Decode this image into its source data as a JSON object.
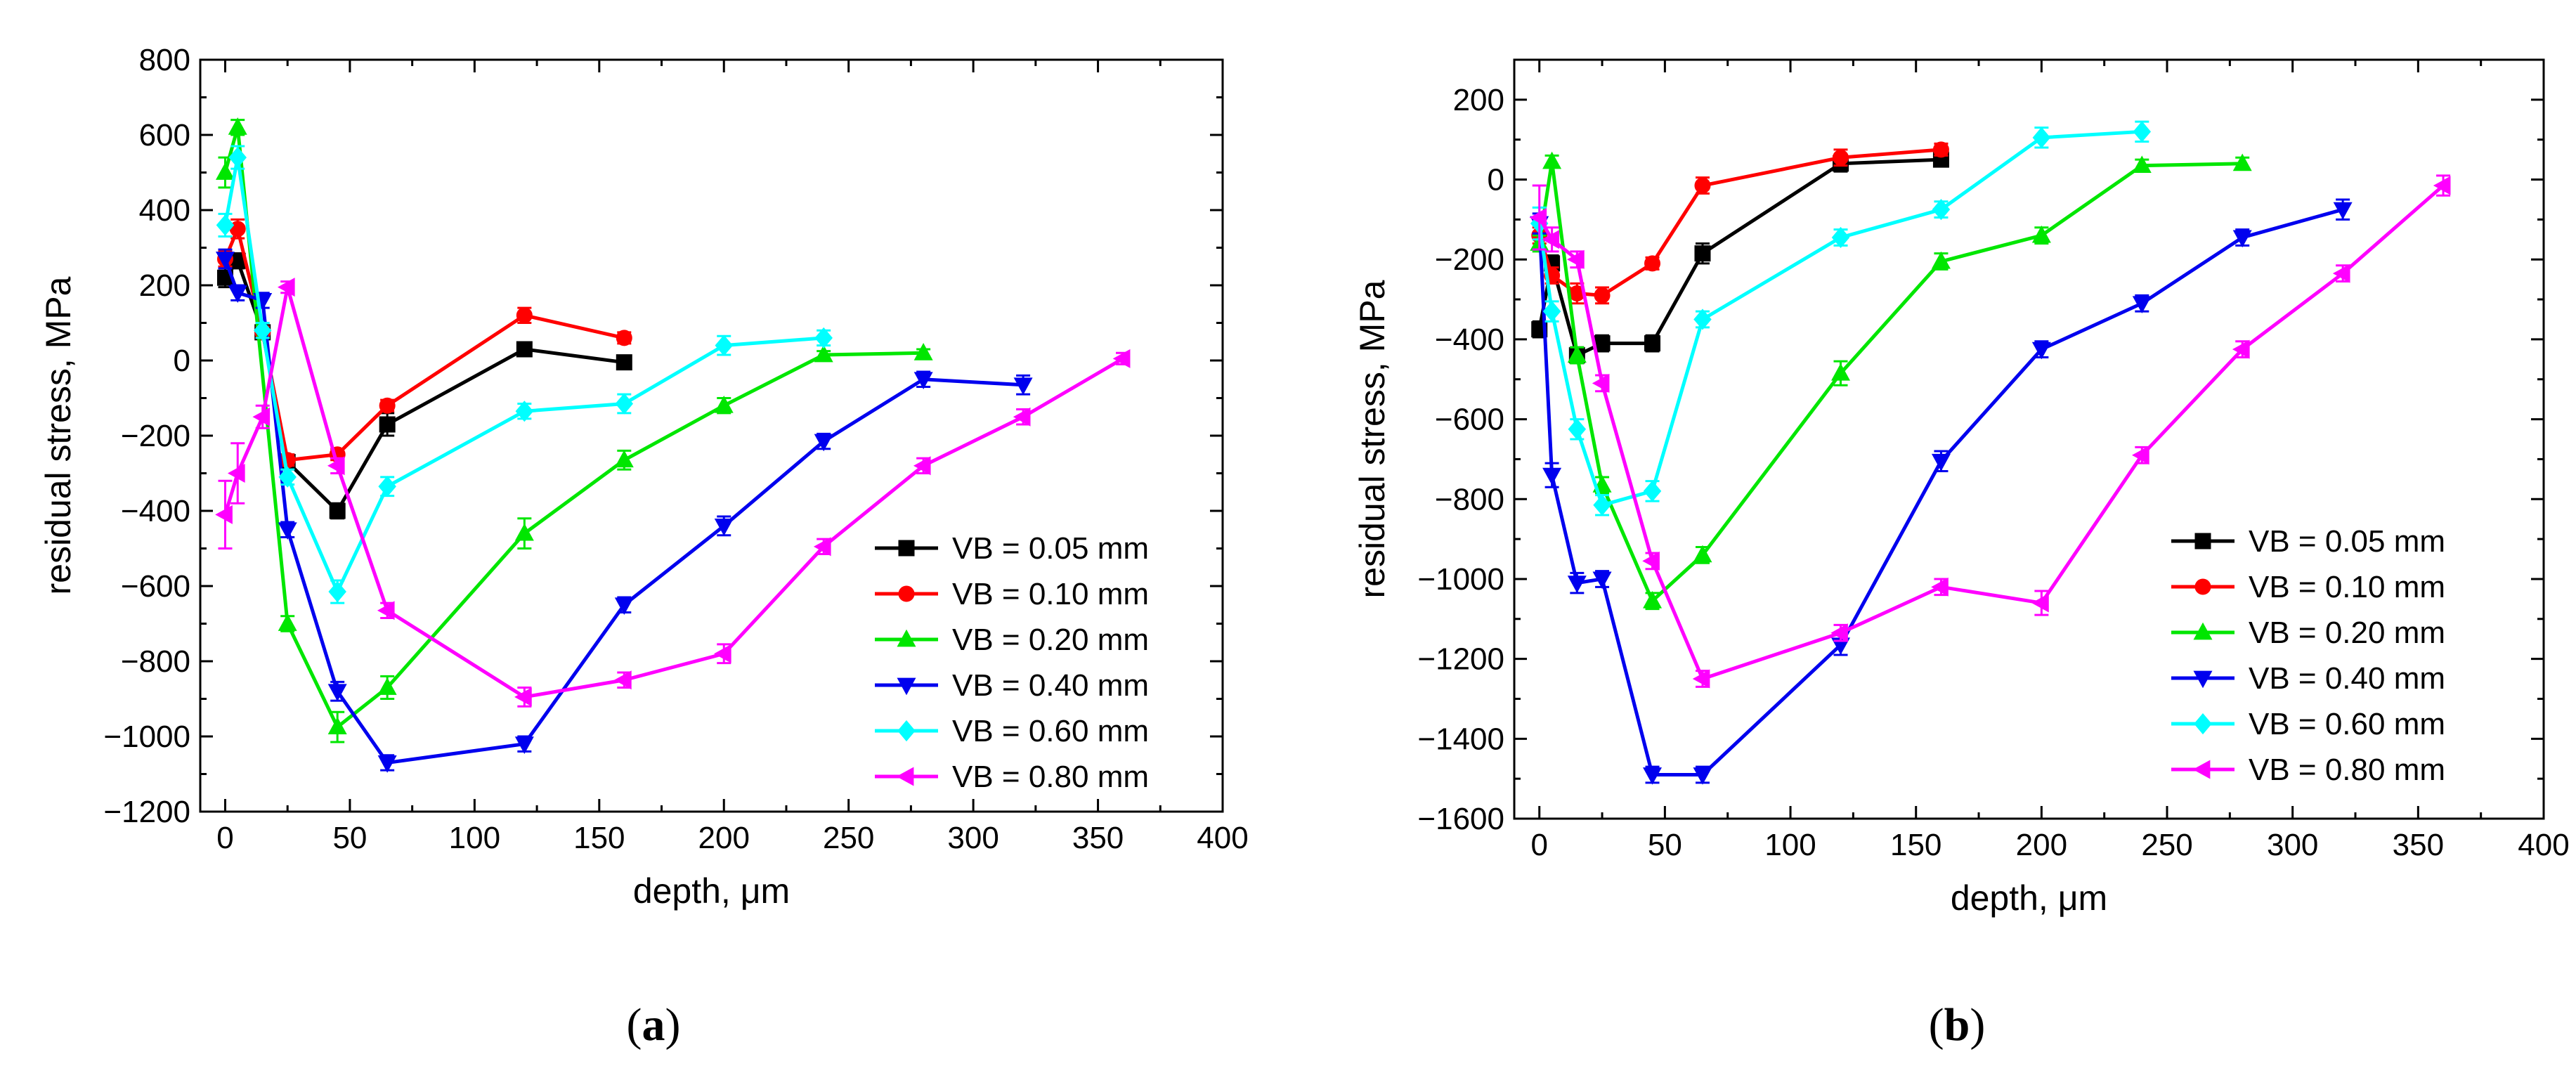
{
  "colors": {
    "VB = 0.05 mm": "#000000",
    "VB = 0.10 mm": "#ff0000",
    "VB = 0.20 mm": "#00e600",
    "VB = 0.40 mm": "#0000ee",
    "VB = 0.60 mm": "#00ffff",
    "VB = 0.80 mm": "#ff00ff"
  },
  "chart_data": [
    {
      "type": "line",
      "panel_label": "a",
      "xlabel": "depth, μm",
      "ylabel": "residual stress, MPa",
      "xlim": [
        -10,
        400
      ],
      "ylim": [
        -1200,
        800
      ],
      "xticks": [
        0,
        50,
        100,
        150,
        200,
        250,
        300,
        350,
        400
      ],
      "yticks": [
        -1200,
        -1000,
        -800,
        -600,
        -400,
        -200,
        0,
        200,
        400,
        600,
        800
      ],
      "legend_position": "bottom-right",
      "series": [
        {
          "name": "VB = 0.05 mm",
          "marker": "square",
          "x": [
            0,
            5,
            15,
            25,
            45,
            65,
            120,
            160
          ],
          "y": [
            220,
            265,
            75,
            -270,
            -400,
            -170,
            30,
            -5
          ],
          "err": [
            25,
            20,
            15,
            20,
            20,
            30,
            15,
            15
          ]
        },
        {
          "name": "VB = 0.10 mm",
          "marker": "circle",
          "x": [
            0,
            5,
            15,
            25,
            45,
            65,
            120,
            160
          ],
          "y": [
            270,
            350,
            75,
            -265,
            -250,
            -120,
            120,
            60
          ],
          "err": [
            20,
            25,
            15,
            15,
            15,
            15,
            20,
            15
          ]
        },
        {
          "name": "VB = 0.20 mm",
          "marker": "triangle-up",
          "x": [
            0,
            5,
            25,
            45,
            65,
            120,
            160,
            200,
            240,
            280
          ],
          "y": [
            500,
            620,
            -700,
            -975,
            -870,
            -460,
            -265,
            -120,
            15,
            20
          ],
          "err": [
            40,
            20,
            20,
            40,
            30,
            40,
            25,
            20,
            10,
            10
          ]
        },
        {
          "name": "VB = 0.40 mm",
          "marker": "triangle-down",
          "x": [
            0,
            5,
            15,
            25,
            45,
            65,
            120,
            160,
            200,
            240,
            280,
            320
          ],
          "y": [
            270,
            180,
            160,
            -450,
            -880,
            -1070,
            -1020,
            -650,
            -440,
            -215,
            -50,
            -65
          ],
          "err": [
            25,
            20,
            20,
            20,
            25,
            20,
            20,
            20,
            25,
            20,
            20,
            25
          ]
        },
        {
          "name": "VB = 0.60 mm",
          "marker": "diamond",
          "x": [
            0,
            5,
            15,
            25,
            45,
            65,
            120,
            160,
            200,
            240
          ],
          "y": [
            360,
            540,
            80,
            -310,
            -615,
            -335,
            -135,
            -115,
            40,
            60
          ],
          "err": [
            30,
            30,
            20,
            20,
            30,
            25,
            20,
            25,
            25,
            20
          ]
        },
        {
          "name": "VB = 0.80 mm",
          "marker": "triangle-left",
          "x": [
            0,
            5,
            15,
            25,
            45,
            65,
            120,
            160,
            200,
            240,
            280,
            320,
            360
          ],
          "y": [
            -410,
            -300,
            -150,
            195,
            -280,
            -665,
            -895,
            -850,
            -780,
            -495,
            -280,
            -150,
            5
          ],
          "err": [
            90,
            80,
            30,
            15,
            20,
            20,
            25,
            20,
            25,
            20,
            20,
            20,
            15
          ]
        }
      ]
    },
    {
      "type": "line",
      "panel_label": "b",
      "xlabel": "depth, μm",
      "ylabel": "residual stress, MPa",
      "xlim": [
        -10,
        400
      ],
      "ylim": [
        -1600,
        300
      ],
      "xticks": [
        0,
        50,
        100,
        150,
        200,
        250,
        300,
        350,
        400
      ],
      "yticks": [
        -1600,
        -1400,
        -1200,
        -1000,
        -800,
        -600,
        -400,
        -200,
        0,
        200
      ],
      "legend_position": "bottom-right",
      "series": [
        {
          "name": "VB = 0.05 mm",
          "marker": "square",
          "x": [
            0,
            5,
            15,
            25,
            45,
            65,
            120,
            160
          ],
          "y": [
            -375,
            -210,
            -440,
            -410,
            -410,
            -185,
            40,
            50
          ],
          "err": [
            20,
            20,
            20,
            20,
            20,
            25,
            20,
            15
          ]
        },
        {
          "name": "VB = 0.10 mm",
          "marker": "circle",
          "x": [
            0,
            5,
            15,
            25,
            45,
            65,
            120,
            160
          ],
          "y": [
            -140,
            -240,
            -285,
            -290,
            -210,
            -15,
            55,
            75
          ],
          "err": [
            20,
            20,
            25,
            20,
            15,
            20,
            20,
            15
          ]
        },
        {
          "name": "VB = 0.20 mm",
          "marker": "triangle-up",
          "x": [
            0,
            5,
            15,
            25,
            45,
            65,
            120,
            160,
            200,
            240,
            280
          ],
          "y": [
            -160,
            45,
            -440,
            -765,
            -1055,
            -940,
            -485,
            -205,
            -140,
            35,
            40
          ],
          "err": [
            20,
            15,
            20,
            20,
            20,
            20,
            30,
            20,
            20,
            15,
            15
          ]
        },
        {
          "name": "VB = 0.40 mm",
          "marker": "triangle-down",
          "x": [
            0,
            5,
            15,
            25,
            45,
            65,
            120,
            160,
            200,
            240,
            280,
            320
          ],
          "y": [
            -110,
            -740,
            -1010,
            -1000,
            -1490,
            -1490,
            -1165,
            -705,
            -425,
            -310,
            -145,
            -75
          ],
          "err": [
            25,
            30,
            25,
            20,
            20,
            20,
            25,
            25,
            20,
            20,
            20,
            25
          ]
        },
        {
          "name": "VB = 0.60 mm",
          "marker": "diamond",
          "x": [
            0,
            5,
            15,
            25,
            45,
            65,
            120,
            160,
            200,
            240
          ],
          "y": [
            -110,
            -330,
            -625,
            -815,
            -780,
            -350,
            -145,
            -75,
            105,
            120
          ],
          "err": [
            40,
            25,
            25,
            25,
            25,
            20,
            20,
            20,
            25,
            25
          ]
        },
        {
          "name": "VB = 0.80 mm",
          "marker": "triangle-left",
          "x": [
            0,
            5,
            15,
            25,
            45,
            65,
            120,
            160,
            200,
            240,
            280,
            320,
            360
          ],
          "y": [
            -95,
            -150,
            -200,
            -510,
            -955,
            -1250,
            -1135,
            -1020,
            -1060,
            -690,
            -425,
            -235,
            -15
          ],
          "err": [
            80,
            30,
            20,
            20,
            20,
            20,
            20,
            20,
            30,
            20,
            20,
            20,
            25
          ]
        }
      ]
    }
  ]
}
